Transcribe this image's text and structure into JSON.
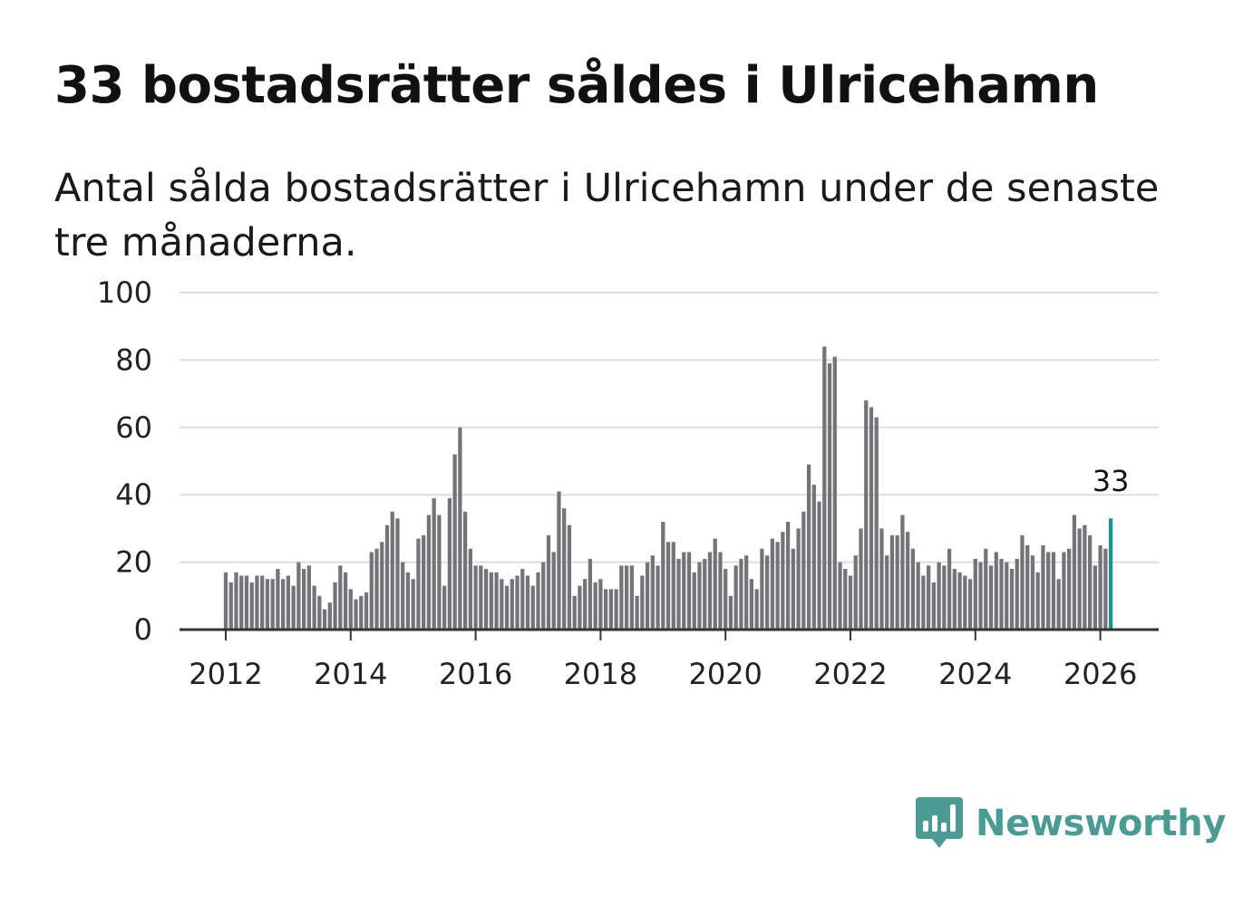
{
  "title": "33 bostadsrätter såldes i Ulricehamn",
  "subtitle": "Antal sålda bostadsrätter i Ulricehamn under de senaste tre månaderna.",
  "brand": {
    "name": "Newsworthy",
    "logo_icon": "bar-chart-speech-bubble-icon"
  },
  "colors": {
    "bar": "#747378",
    "highlight": "#1a958d",
    "grid": "#dddddd",
    "axis": "#333333",
    "brand": "#4a9b94"
  },
  "chart_data": {
    "type": "bar",
    "title": "33 bostadsrätter såldes i Ulricehamn",
    "xlabel": "",
    "ylabel": "",
    "ylim": [
      0,
      100
    ],
    "yticks": [
      "0",
      "20",
      "40",
      "60",
      "80",
      "100"
    ],
    "x_start": "2012-01",
    "xlim": [
      2011.25,
      2026.9
    ],
    "xticks": [
      "2012",
      "2014",
      "2016",
      "2018",
      "2020",
      "2022",
      "2024",
      "2026"
    ],
    "grid": true,
    "highlight_label": "33",
    "values": [
      17,
      14,
      17,
      16,
      16,
      14,
      16,
      16,
      15,
      15,
      18,
      15,
      16,
      13,
      20,
      18,
      19,
      13,
      10,
      6,
      8,
      14,
      19,
      17,
      12,
      9,
      10,
      11,
      23,
      24,
      26,
      31,
      35,
      33,
      20,
      17,
      15,
      27,
      28,
      34,
      39,
      34,
      13,
      39,
      52,
      60,
      35,
      24,
      19,
      19,
      18,
      17,
      17,
      15,
      13,
      15,
      16,
      18,
      16,
      13,
      17,
      20,
      28,
      23,
      41,
      36,
      31,
      10,
      13,
      15,
      21,
      14,
      15,
      12,
      12,
      12,
      19,
      19,
      19,
      10,
      16,
      20,
      22,
      19,
      32,
      26,
      26,
      21,
      23,
      23,
      17,
      20,
      21,
      23,
      27,
      23,
      18,
      10,
      19,
      21,
      22,
      15,
      12,
      24,
      22,
      27,
      26,
      29,
      32,
      24,
      30,
      35,
      49,
      43,
      38,
      84,
      79,
      81,
      20,
      18,
      16,
      22,
      30,
      68,
      66,
      63,
      30,
      22,
      28,
      28,
      34,
      29,
      24,
      20,
      16,
      19,
      14,
      20,
      19,
      24,
      18,
      17,
      16,
      15,
      21,
      20,
      24,
      19,
      23,
      21,
      20,
      18,
      21,
      28,
      25,
      22,
      17,
      25,
      23,
      23,
      15,
      23,
      24,
      34,
      30,
      31,
      28,
      19,
      25,
      24,
      33
    ]
  }
}
